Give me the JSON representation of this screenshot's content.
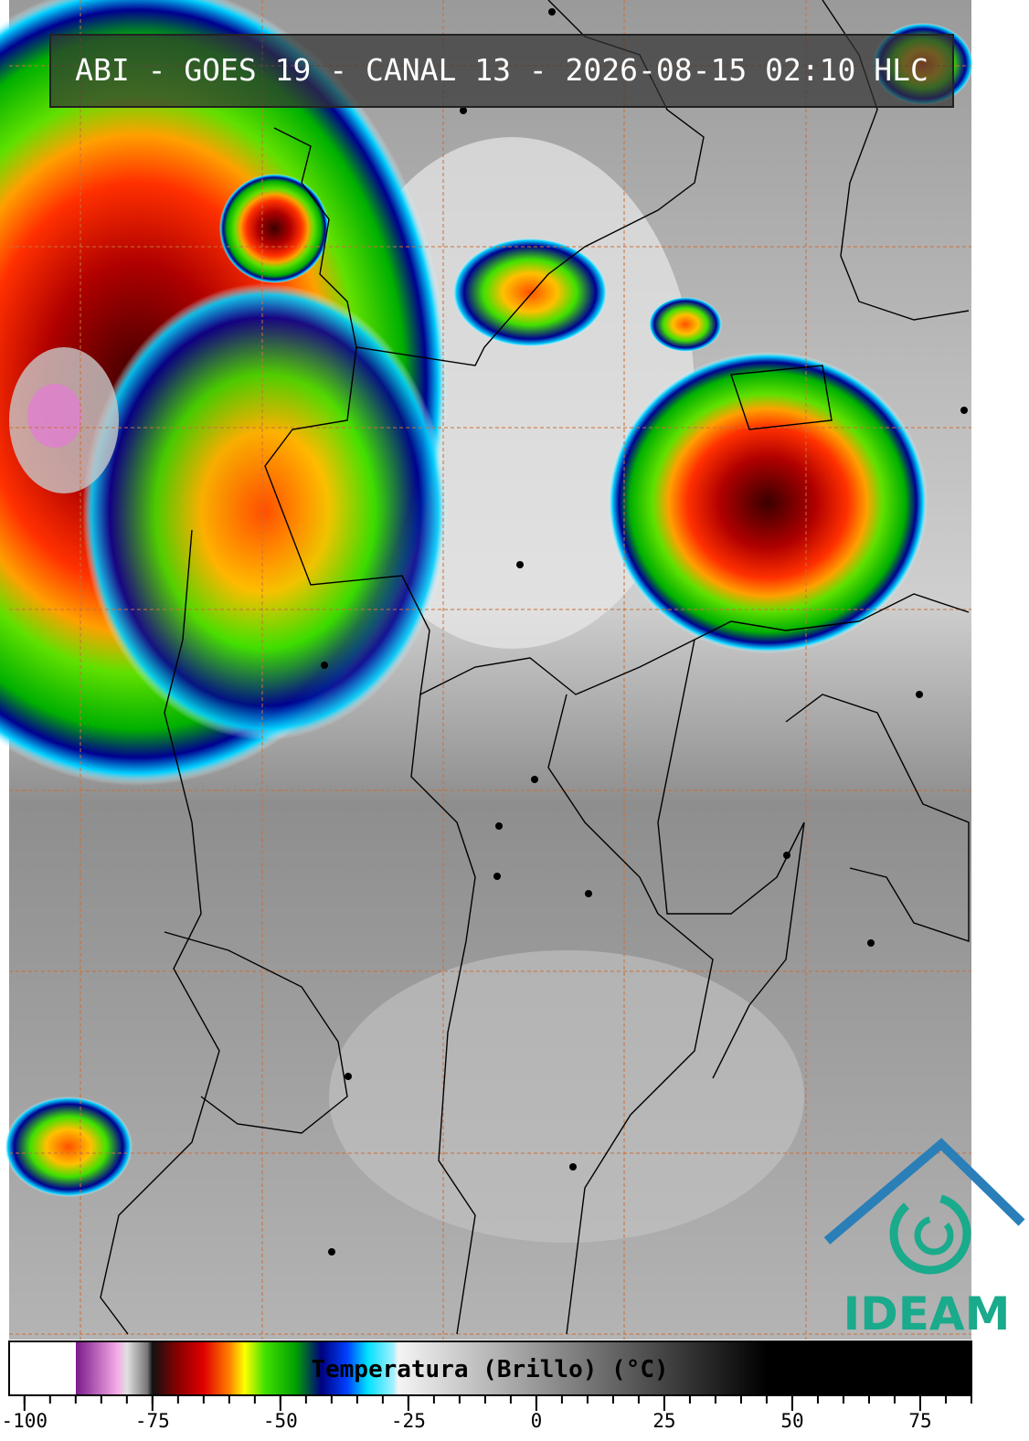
{
  "header": {
    "title": "ABI - GOES 19 - CANAL 13 - 2026-08-15 02:10 HLC"
  },
  "logo": {
    "text": "IDEAM"
  },
  "chart_data": {
    "type": "colorbar",
    "label": "Temperatura (Brillo) (°C)",
    "xlim": [
      -103,
      85
    ],
    "xticks": [
      -100,
      -75,
      -50,
      -25,
      0,
      25,
      50,
      75
    ],
    "minor_ticks": [
      -100,
      -95,
      -90,
      -85,
      -80,
      -75,
      -70,
      -65,
      -60,
      -55,
      -50,
      -45,
      -40,
      -35,
      -30,
      -25,
      -20,
      -15,
      -10,
      -5,
      0,
      5,
      10,
      15,
      20,
      25,
      30,
      35,
      40,
      45,
      50,
      55,
      60,
      65,
      70,
      75,
      80,
      85
    ],
    "colorscale": [
      {
        "value": -103,
        "color": "#ffffff"
      },
      {
        "value": -90,
        "color": "#ffffff"
      },
      {
        "value": -90,
        "color": "#7a1a8a"
      },
      {
        "value": -82,
        "color": "#f4a8e6"
      },
      {
        "value": -80,
        "color": "#e0e0e0"
      },
      {
        "value": -76,
        "color": "#777777"
      },
      {
        "value": -75,
        "color": "#111111"
      },
      {
        "value": -70,
        "color": "#8b0000"
      },
      {
        "value": -65,
        "color": "#e00000"
      },
      {
        "value": -60,
        "color": "#ff8000"
      },
      {
        "value": -57,
        "color": "#ffff00"
      },
      {
        "value": -53,
        "color": "#40e000"
      },
      {
        "value": -47,
        "color": "#00a000"
      },
      {
        "value": -42,
        "color": "#000080"
      },
      {
        "value": -37,
        "color": "#0040ff"
      },
      {
        "value": -33,
        "color": "#00e0ff"
      },
      {
        "value": -28,
        "color": "#a0f0ff"
      },
      {
        "value": -27,
        "color": "#f4f4f4"
      },
      {
        "value": 45,
        "color": "#000000"
      },
      {
        "value": 85,
        "color": "#000000"
      }
    ]
  }
}
